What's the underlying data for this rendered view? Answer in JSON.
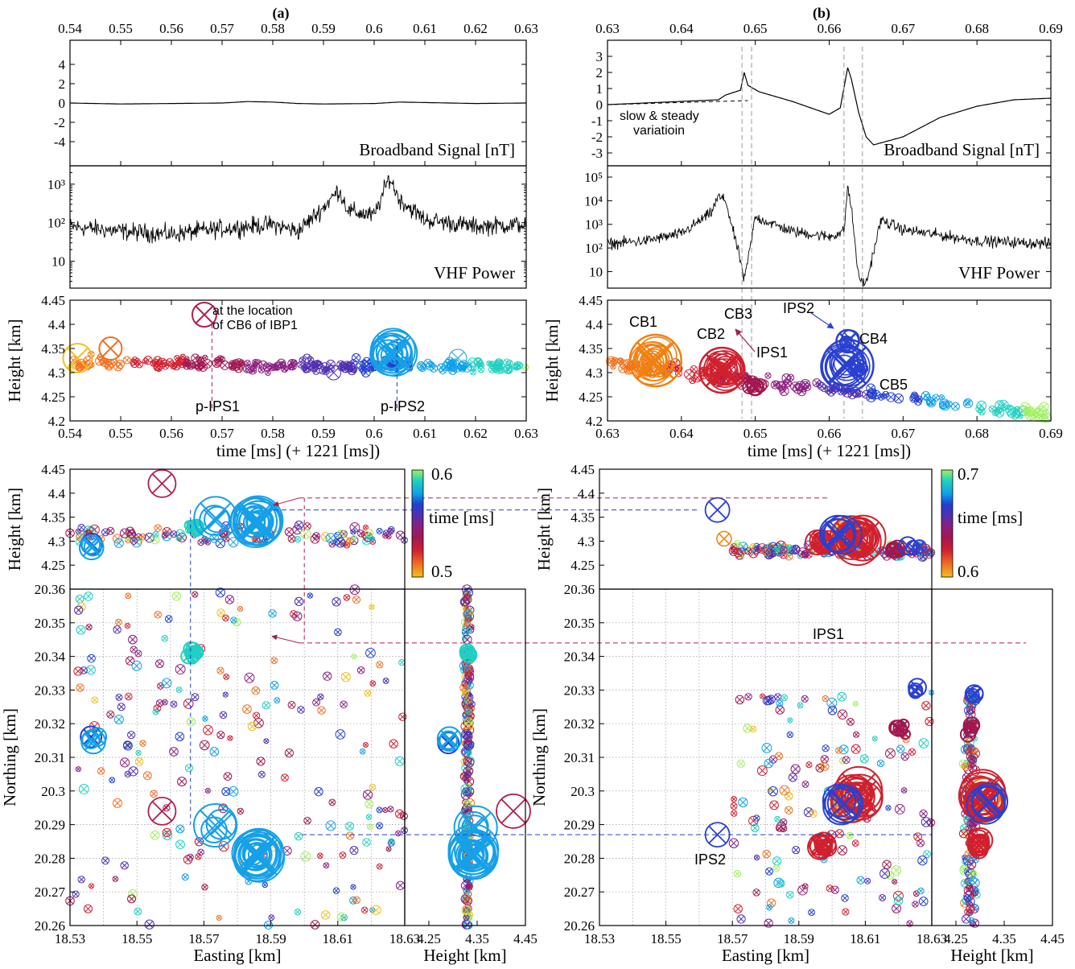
{
  "panels": {
    "a": "(a)",
    "b": "(b)"
  },
  "colors": {
    "line": "#000000",
    "crimson": "#b0204a",
    "blue_dash": "#2040c0",
    "arrow_crimson": "#a0204a",
    "arrow_blue": "#3040d0",
    "colormap": [
      "#f0c020",
      "#f07020",
      "#d02030",
      "#a01850",
      "#8a2080",
      "#5030b0",
      "#2040d0",
      "#10a0e8",
      "#20d0c0",
      "#a0f060"
    ]
  },
  "chart_data": [
    {
      "id": "a_broadband",
      "type": "line",
      "xlim": [
        0.54,
        0.63
      ],
      "ylim": [
        -6.5,
        6.5
      ],
      "xticks_top": [
        "0.54",
        "0.55",
        "0.56",
        "0.57",
        "0.58",
        "0.59",
        "0.6",
        "0.61",
        "0.62",
        "0.63"
      ],
      "yticks": [
        "4",
        "2",
        "0",
        "-2",
        "-4"
      ],
      "label": "Broadband Signal [nT]",
      "x": [
        0.54,
        0.55,
        0.56,
        0.57,
        0.575,
        0.58,
        0.585,
        0.59,
        0.6,
        0.605,
        0.61,
        0.62,
        0.63
      ],
      "y": [
        0.0,
        -0.1,
        -0.05,
        0.0,
        0.15,
        0.1,
        -0.05,
        -0.1,
        -0.05,
        0.1,
        0.05,
        -0.05,
        0.0
      ]
    },
    {
      "id": "a_vhf",
      "type": "line",
      "yscale": "log",
      "xlim": [
        0.54,
        0.63
      ],
      "ylim": [
        2,
        3000
      ],
      "yticks": [
        "10³",
        "10²",
        "10"
      ],
      "label": "VHF Power",
      "x": [
        0.54,
        0.55,
        0.56,
        0.565,
        0.57,
        0.575,
        0.58,
        0.585,
        0.59,
        0.593,
        0.595,
        0.6,
        0.603,
        0.605,
        0.61,
        0.62,
        0.63
      ],
      "y": [
        80,
        60,
        50,
        60,
        70,
        80,
        90,
        60,
        250,
        700,
        200,
        150,
        1500,
        400,
        120,
        80,
        90
      ]
    },
    {
      "id": "a_height",
      "type": "scatter",
      "xlim": [
        0.54,
        0.63
      ],
      "ylim": [
        4.2,
        4.45
      ],
      "xticks": [
        "0.54",
        "0.55",
        "0.56",
        "0.57",
        "0.58",
        "0.59",
        "0.6",
        "0.61",
        "0.62",
        "0.63"
      ],
      "yticks": [
        "4.45",
        "4.4",
        "4.35",
        "4.3",
        "4.25",
        "4.2"
      ],
      "xlabel": "time [ms] (+ 1221 [ms])",
      "ylabel": "Height [km]",
      "annotations": [
        "at the location",
        "of CB6 of IBP1",
        "p-IPS1",
        "p-IPS2"
      ],
      "sources": [
        {
          "t": 0.5415,
          "h": 4.33,
          "s": 18
        },
        {
          "t": 0.548,
          "h": 4.35,
          "s": 14
        },
        {
          "t": 0.5665,
          "h": 4.42,
          "s": 15
        },
        {
          "t": 0.592,
          "h": 4.3,
          "s": 9
        },
        {
          "t": 0.604,
          "h": 4.34,
          "s": 28
        },
        {
          "t": 0.6165,
          "h": 4.33,
          "s": 11
        }
      ]
    },
    {
      "id": "b_broadband",
      "type": "line",
      "xlim": [
        0.63,
        0.69
      ],
      "ylim": [
        -3.8,
        4.0
      ],
      "xticks_top": [
        "0.63",
        "0.64",
        "0.65",
        "0.66",
        "0.67",
        "0.68",
        "0.69"
      ],
      "yticks": [
        "3",
        "2",
        "1",
        "0",
        "-1",
        "-2",
        "-3"
      ],
      "label": "Broadband Signal [nT]",
      "annotations": [
        "slow & steady",
        "variatioin"
      ],
      "x": [
        0.63,
        0.635,
        0.64,
        0.645,
        0.646,
        0.648,
        0.6485,
        0.649,
        0.6505,
        0.655,
        0.66,
        0.6615,
        0.6625,
        0.663,
        0.664,
        0.665,
        0.666,
        0.67,
        0.675,
        0.68,
        0.685,
        0.69
      ],
      "y": [
        0.0,
        0.1,
        0.2,
        0.3,
        0.6,
        0.9,
        2.0,
        1.2,
        0.8,
        0.2,
        -0.6,
        -0.2,
        2.3,
        1.6,
        -0.5,
        -2.0,
        -2.5,
        -2.0,
        -0.8,
        -0.1,
        0.3,
        0.4
      ]
    },
    {
      "id": "b_vhf",
      "type": "line",
      "yscale": "log",
      "xlim": [
        0.63,
        0.69
      ],
      "ylim": [
        2,
        300000
      ],
      "yticks": [
        "10⁵",
        "10⁴",
        "10³",
        "10²",
        "10"
      ],
      "label": "VHF Power",
      "x": [
        0.63,
        0.635,
        0.64,
        0.644,
        0.645,
        0.646,
        0.647,
        0.648,
        0.6485,
        0.649,
        0.65,
        0.655,
        0.66,
        0.662,
        0.6625,
        0.663,
        0.664,
        0.665,
        0.667,
        0.67,
        0.68,
        0.69
      ],
      "y": [
        150,
        200,
        400,
        3000,
        15000,
        10000,
        500,
        30,
        4,
        30,
        2000,
        500,
        300,
        500,
        40000,
        5000,
        5,
        3,
        1500,
        600,
        200,
        150
      ]
    },
    {
      "id": "b_height",
      "type": "scatter",
      "xlim": [
        0.63,
        0.69
      ],
      "ylim": [
        4.2,
        4.45
      ],
      "xticks": [
        "0.63",
        "0.64",
        "0.65",
        "0.66",
        "0.67",
        "0.68",
        "0.69"
      ],
      "yticks": [
        "4.45",
        "4.4",
        "4.35",
        "4.3",
        "4.25",
        "4.2"
      ],
      "xlabel": "time [ms] (+ 1221 [ms])",
      "ylabel": "Height [km]",
      "annotations": [
        "CB1",
        "CB2",
        "CB3",
        "IPS1",
        "IPS2",
        "CB4",
        "CB5"
      ],
      "sources": [
        {
          "t": 0.6365,
          "h": 4.325,
          "s": 32
        },
        {
          "t": 0.6455,
          "h": 4.305,
          "s": 28
        },
        {
          "t": 0.65,
          "h": 4.27,
          "s": 10
        },
        {
          "t": 0.6625,
          "h": 4.365,
          "s": 14
        },
        {
          "t": 0.6625,
          "h": 4.315,
          "s": 32
        },
        {
          "t": 0.664,
          "h": 4.31,
          "s": 10
        }
      ]
    },
    {
      "id": "a_map",
      "type": "scatter",
      "xlim": [
        18.53,
        18.63
      ],
      "ylim": [
        20.26,
        20.36
      ],
      "xticks": [
        "18.53",
        "18.55",
        "18.57",
        "18.59",
        "18.61",
        "18.63"
      ],
      "yticks": [
        "20.36",
        "20.35",
        "20.34",
        "20.33",
        "20.32",
        "20.31",
        "20.3",
        "20.29",
        "20.28",
        "20.27",
        "20.26"
      ],
      "xlabel": "Easting [km]",
      "ylabel": "Northing [km]",
      "top_ylim": [
        4.2,
        4.45
      ],
      "top_yticks": [
        "4.45",
        "4.4",
        "4.35",
        "4.3",
        "4.25"
      ],
      "top_ylabel": "Height [km]",
      "side_xlim": [
        4.2,
        4.45
      ],
      "side_xticks": [
        "4.25",
        "4.35",
        "4.45"
      ],
      "side_xlabel": "Height [km]",
      "colorbar": {
        "label": "time [ms]",
        "min": "0.5",
        "max": "0.6"
      }
    },
    {
      "id": "b_map",
      "type": "scatter",
      "xlim": [
        18.53,
        18.63
      ],
      "ylim": [
        20.26,
        20.36
      ],
      "xticks": [
        "18.53",
        "18.55",
        "18.57",
        "18.59",
        "18.61",
        "18.63"
      ],
      "yticks": [
        "20.36",
        "20.35",
        "20.34",
        "20.33",
        "20.32",
        "20.31",
        "20.3",
        "20.29",
        "20.28",
        "20.27",
        "20.26"
      ],
      "xlabel": "Easting [km]",
      "ylabel": "Northing [km]",
      "top_ylim": [
        4.2,
        4.45
      ],
      "top_yticks": [
        "4.45",
        "4.4",
        "4.35",
        "4.3",
        "4.25"
      ],
      "top_ylabel": "Height [km]",
      "side_xlim": [
        4.2,
        4.45
      ],
      "side_xticks": [
        "4.25",
        "4.35",
        "4.45"
      ],
      "side_xlabel": "Height [km]",
      "colorbar": {
        "label": "time [ms]",
        "min": "0.6",
        "max": "0.7"
      },
      "annotations": [
        "IPS1",
        "IPS2"
      ]
    }
  ]
}
